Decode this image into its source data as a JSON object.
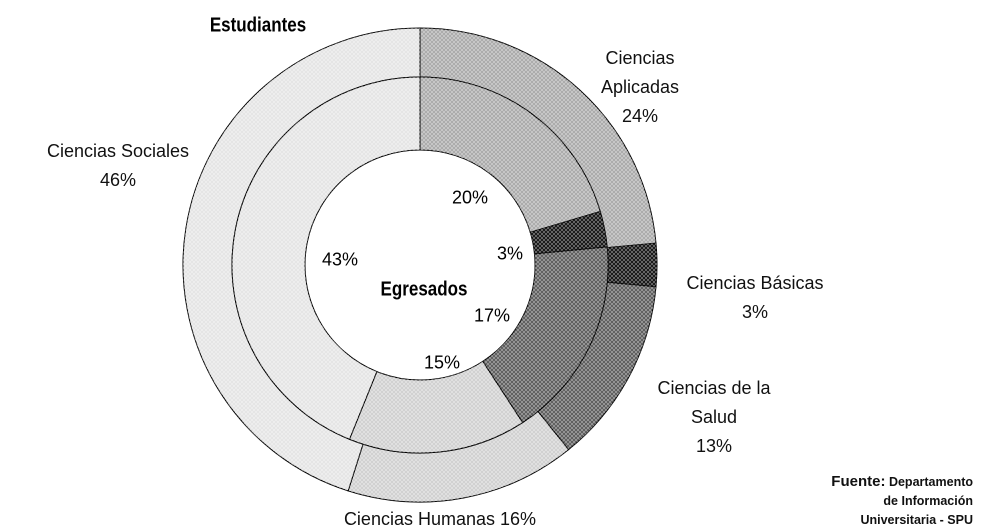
{
  "chart_data": {
    "type": "donut",
    "categories": [
      "Ciencias Aplicadas",
      "Ciencias Básicas",
      "Ciencias de la Salud",
      "Ciencias Humanas",
      "Ciencias Sociales"
    ],
    "colors": [
      "#a8a8a8",
      "#111111",
      "#5a5a5a",
      "#cfcfcf",
      "#e4e4e4"
    ],
    "series": [
      {
        "name": "Estudiantes",
        "values": [
          24,
          3,
          13,
          16,
          46
        ],
        "value_labels": [
          "24%",
          "3%",
          "13%",
          "16%",
          "46%"
        ]
      },
      {
        "name": "Egresados",
        "values": [
          20,
          3,
          17,
          15,
          43
        ],
        "value_labels": [
          "20%",
          "3%",
          "17%",
          "15%",
          "43%"
        ]
      }
    ],
    "source_label": "Fuente:",
    "source": "Departamento de Información Universitaria - SPU"
  }
}
